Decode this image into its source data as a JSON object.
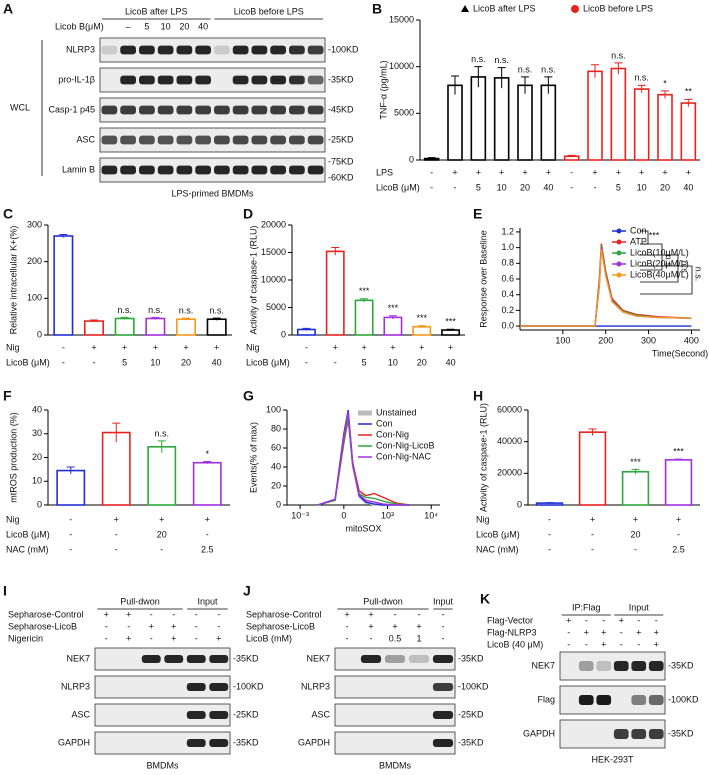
{
  "chart_data": [
    {
      "panel": "B",
      "type": "bar",
      "ylabel": "TNF-α (pg/mL)",
      "ylim": [
        0,
        15000
      ],
      "yticks": [
        0,
        5000,
        10000,
        15000
      ],
      "values": [
        150,
        8000,
        8900,
        8800,
        8000,
        8000,
        400,
        9500,
        9800,
        7600,
        7000,
        6100
      ],
      "errors": [
        100,
        1000,
        1100,
        1100,
        900,
        900,
        100,
        700,
        600,
        400,
        400,
        400
      ],
      "colors": [
        "#000000",
        "#000000",
        "#000000",
        "#000000",
        "#000000",
        "#000000",
        "#e8231f",
        "#e8231f",
        "#e8231f",
        "#e8231f",
        "#e8231f",
        "#e8231f"
      ],
      "annotations": [
        null,
        null,
        "n.s.",
        "n.s.",
        "n.s.",
        "n.s.",
        null,
        null,
        "n.s.",
        "n.s.",
        "*",
        "**"
      ],
      "legend": [
        {
          "name": "LicoB after LPS",
          "color": "#000000",
          "marker": "triangle"
        },
        {
          "name": "LicoB before LPS",
          "color": "#e8231f",
          "marker": "circle"
        }
      ],
      "conditions": [
        {
          "name": "LPS",
          "values": [
            "-",
            "+",
            "+",
            "+",
            "+",
            "+",
            "-",
            "+",
            "+",
            "+",
            "+",
            "+"
          ]
        },
        {
          "name": "LicoB (μM)",
          "values": [
            "-",
            "-",
            "5",
            "10",
            "20",
            "40",
            "-",
            "-",
            "5",
            "10",
            "20",
            "40"
          ]
        }
      ]
    },
    {
      "panel": "C",
      "type": "bar",
      "ylabel": "Relative intracellular K+(%)",
      "ylim": [
        0,
        300
      ],
      "yticks": [
        0,
        100,
        200,
        300
      ],
      "values": [
        270,
        38,
        45,
        45,
        43,
        43
      ],
      "errors": [
        4,
        3,
        3,
        3,
        3,
        3
      ],
      "colors": [
        "#1f2fd6",
        "#e8231f",
        "#2ca83c",
        "#a030e0",
        "#f59a1c",
        "#000000"
      ],
      "annotations": [
        null,
        null,
        "n.s.",
        "n.s.",
        "n.s.",
        "n.s."
      ],
      "conditions": [
        {
          "name": "Nig",
          "values": [
            "-",
            "+",
            "+",
            "+",
            "+",
            "+"
          ]
        },
        {
          "name": "LicoB (μM)",
          "values": [
            "-",
            "-",
            "5",
            "10",
            "20",
            "40"
          ]
        }
      ]
    },
    {
      "panel": "D",
      "type": "bar",
      "ylabel": "Activity of caspase-1 (RLU)",
      "ylim": [
        0,
        20000
      ],
      "yticks": [
        0,
        5000,
        10000,
        15000,
        20000
      ],
      "values": [
        1000,
        15200,
        6300,
        3200,
        1500,
        900
      ],
      "errors": [
        200,
        700,
        300,
        300,
        200,
        150
      ],
      "colors": [
        "#1f2fd6",
        "#e8231f",
        "#2ca83c",
        "#a030e0",
        "#f59a1c",
        "#000000"
      ],
      "annotations": [
        null,
        null,
        "***",
        "***",
        "***",
        "***"
      ],
      "conditions": [
        {
          "name": "Nig",
          "values": [
            "-",
            "+",
            "+",
            "+",
            "+",
            "+"
          ]
        },
        {
          "name": "LicoB (μM)",
          "values": [
            "-",
            "-",
            "5",
            "10",
            "20",
            "40"
          ]
        }
      ]
    },
    {
      "panel": "E",
      "type": "line",
      "ylabel": "Response over Baseline",
      "xlabel": "Time(Second)",
      "ylim": [
        -0.05,
        1.25
      ],
      "yticks": [
        {
          "value": 0,
          "label": "0.0"
        },
        0.2,
        0.4,
        0.6,
        0.8,
        {
          "value": 1,
          "label": "1.0"
        },
        1.2
      ],
      "xlim": [
        0,
        420
      ],
      "xticks": [
        100,
        200,
        300,
        400
      ],
      "x": [
        0,
        175,
        185,
        190,
        200,
        215,
        240,
        270,
        320,
        400
      ],
      "series": [
        {
          "name": "Con",
          "color": "#1f2fd6",
          "values": [
            0,
            0,
            0,
            0,
            0,
            0,
            0,
            0,
            0,
            0
          ]
        },
        {
          "name": "ATP",
          "color": "#e8231f",
          "values": [
            0,
            0,
            0.6,
            1.05,
            0.7,
            0.35,
            0.2,
            0.15,
            0.12,
            0.1
          ]
        },
        {
          "name": "LicoB(10μM/L)",
          "color": "#2ca83c",
          "values": [
            0,
            0,
            0.55,
            1.02,
            0.68,
            0.33,
            0.19,
            0.14,
            0.11,
            0.1
          ]
        },
        {
          "name": "LicoB(20μM/L)",
          "color": "#a030e0",
          "values": [
            0,
            0,
            0.5,
            1.0,
            0.66,
            0.32,
            0.18,
            0.13,
            0.11,
            0.1
          ]
        },
        {
          "name": "LicoB(40μM/L)",
          "color": "#f59a1c",
          "values": [
            0,
            0,
            0.52,
            0.98,
            0.64,
            0.31,
            0.18,
            0.13,
            0.11,
            0.1
          ]
        }
      ],
      "annotations": [
        "***",
        "n.s.",
        "n.s.",
        "n.s."
      ]
    },
    {
      "panel": "F",
      "type": "bar",
      "ylabel": "mtROS production (%)",
      "ylim": [
        0,
        40
      ],
      "yticks": [
        0,
        10,
        20,
        30,
        40
      ],
      "values": [
        14.5,
        30.5,
        24.5,
        17.8
      ],
      "errors": [
        1.5,
        4,
        2.5,
        0.5
      ],
      "colors": [
        "#1f2fd6",
        "#e8231f",
        "#2ca83c",
        "#a030e0"
      ],
      "annotations": [
        null,
        null,
        "n.s.",
        "*"
      ],
      "conditions": [
        {
          "name": "Nig",
          "values": [
            "-",
            "+",
            "+",
            "+"
          ]
        },
        {
          "name": "LicoB (μM)",
          "values": [
            "-",
            "-",
            "20",
            "-"
          ]
        },
        {
          "name": "NAC  (mM)",
          "values": [
            "-",
            "-",
            "-",
            "2.5"
          ]
        }
      ]
    },
    {
      "panel": "G",
      "type": "line",
      "ylabel": "Events(% of max)",
      "xlabel": "mitoSOX",
      "ylim": [
        0,
        100
      ],
      "yticks": [
        0,
        20,
        40,
        60,
        80,
        100
      ],
      "xlim": [
        -1.3,
        2.2
      ],
      "xticks": [
        {
          "value": -1,
          "label": "10⁻³"
        },
        0,
        {
          "value": 1,
          "label": "10³"
        },
        {
          "value": 2,
          "label": "10⁴"
        }
      ],
      "x": [
        -0.6,
        -0.2,
        0,
        0.1,
        0.2,
        0.35,
        0.5,
        0.7,
        0.9,
        1.2,
        1.5
      ],
      "series": [
        {
          "name": "Unstained",
          "color": "#bbbbbb",
          "values": [
            0,
            5,
            70,
            95,
            40,
            8,
            2,
            0,
            0,
            0,
            0
          ]
        },
        {
          "name": "Con",
          "color": "#1f2fd6",
          "values": [
            0,
            6,
            75,
            100,
            45,
            10,
            3,
            1,
            0,
            0,
            0
          ]
        },
        {
          "name": "Con-Nig",
          "color": "#e8231f",
          "values": [
            0,
            5,
            65,
            90,
            45,
            15,
            10,
            12,
            8,
            2,
            0
          ]
        },
        {
          "name": "Con-Nig-LicoB",
          "color": "#2ca83c",
          "values": [
            0,
            5,
            68,
            92,
            42,
            12,
            8,
            7,
            4,
            1,
            0
          ]
        },
        {
          "name": "Con-Nig-NAC",
          "color": "#a030e0",
          "values": [
            0,
            6,
            72,
            98,
            44,
            11,
            5,
            3,
            1,
            0,
            0
          ]
        }
      ]
    },
    {
      "panel": "H",
      "type": "bar",
      "ylabel": "Activity of caspase-1 (RLU)",
      "ylim": [
        0,
        60000
      ],
      "yticks": [
        0,
        20000,
        40000,
        60000
      ],
      "values": [
        1200,
        46000,
        21000,
        28500
      ],
      "errors": [
        300,
        2000,
        1500,
        500
      ],
      "colors": [
        "#1f2fd6",
        "#e8231f",
        "#2ca83c",
        "#a030e0"
      ],
      "annotations": [
        null,
        null,
        "***",
        "***"
      ],
      "conditions": [
        {
          "name": "Nig",
          "values": [
            "-",
            "+",
            "+",
            "+"
          ]
        },
        {
          "name": "LicoB (μM)",
          "values": [
            "-",
            "-",
            "20",
            "-"
          ]
        },
        {
          "name": "NAC  (mM)",
          "values": [
            "-",
            "-",
            "-",
            "2.5"
          ]
        }
      ]
    }
  ],
  "blots": [
    {
      "panel": "A",
      "header": "Licob B(μM)",
      "header_lanes": [
        "–",
        "5",
        "10",
        "20",
        "40"
      ],
      "groups": [
        "LicoB after LPS",
        "LicoB before LPS"
      ],
      "side": "WCL",
      "caption": "LPS-primed BMDMs",
      "rows": [
        {
          "name": "NLRP3",
          "markers": [
            "-100KD"
          ]
        },
        {
          "name": "pro-IL-1β",
          "markers": [
            "-35KD"
          ]
        },
        {
          "name": "Casp-1 p45",
          "markers": [
            "-45KD"
          ]
        },
        {
          "name": "ASC",
          "markers": [
            "-25KD"
          ]
        },
        {
          "name": "Lamin B",
          "markers": [
            "-75KD",
            "-60KD"
          ]
        }
      ]
    },
    {
      "panel": "I",
      "groups": [
        "Pull-dwon",
        "Input"
      ],
      "caption": "BMDMs",
      "conditions": [
        {
          "name": "Sepharose-Control",
          "values": [
            "+",
            "+",
            "-",
            "-",
            "-",
            "-"
          ]
        },
        {
          "name": "Sepharose-LicoB",
          "values": [
            "-",
            "-",
            "+",
            "+",
            "-",
            "-"
          ]
        },
        {
          "name": "Nigericin",
          "values": [
            "-",
            "+",
            "-",
            "+",
            "-",
            "+"
          ]
        }
      ],
      "rows": [
        {
          "name": "NEK7",
          "markers": [
            "-35KD"
          ]
        },
        {
          "name": "NLRP3",
          "markers": [
            "-100KD"
          ]
        },
        {
          "name": "ASC",
          "markers": [
            "-25KD"
          ]
        },
        {
          "name": "GAPDH",
          "markers": [
            "-35KD"
          ]
        }
      ]
    },
    {
      "panel": "J",
      "groups": [
        "Pull-dwon",
        "Input"
      ],
      "caption": "BMDMs",
      "conditions": [
        {
          "name": "Sepharose-Control",
          "values": [
            "+",
            "+",
            "-",
            "-",
            "-"
          ]
        },
        {
          "name": "Sepharose-LicoB",
          "values": [
            "-",
            "+",
            "+",
            "+",
            "-"
          ]
        },
        {
          "name": "LicoB  (mM)",
          "values": [
            "-",
            "-",
            "0.5",
            "1",
            "-"
          ]
        }
      ],
      "rows": [
        {
          "name": "NEK7",
          "markers": [
            "-35KD"
          ]
        },
        {
          "name": "NLRP3",
          "markers": [
            "-100KD"
          ]
        },
        {
          "name": "ASC",
          "markers": [
            "-25KD"
          ]
        },
        {
          "name": "GAPDH",
          "markers": [
            "-35KD"
          ]
        }
      ]
    },
    {
      "panel": "K",
      "groups": [
        "IP:Flag",
        "Input"
      ],
      "caption": "HEK-293T",
      "conditions": [
        {
          "name": "Flag-Vector",
          "values": [
            "+",
            "-",
            "-",
            "+",
            "-",
            "-"
          ]
        },
        {
          "name": "Flag-NLRP3",
          "values": [
            "-",
            "+",
            "+",
            "-",
            "+",
            "+"
          ]
        },
        {
          "name": "LicoB (40 μM)",
          "values": [
            "-",
            "-",
            "+",
            "-",
            "-",
            "+"
          ]
        }
      ],
      "rows": [
        {
          "name": "NEK7",
          "markers": [
            "-35KD"
          ]
        },
        {
          "name": "Flag",
          "markers": [
            "-100KD"
          ]
        },
        {
          "name": "GAPDH",
          "markers": [
            "-35KD"
          ]
        }
      ]
    }
  ]
}
